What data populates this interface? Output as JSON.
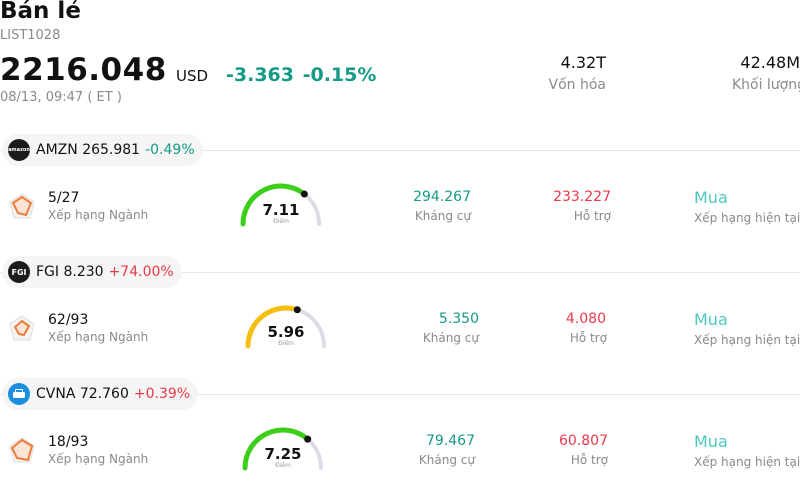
{
  "header": {
    "title": "Bán lẻ",
    "code": "LIST1028",
    "price": "2216.048",
    "currency": "USD",
    "change": "-3.363",
    "change_pct": "-0.15%",
    "time": "08/13, 09:47 ( ET )",
    "market_cap_value": "4.32T",
    "market_cap_label": "Vốn hóa",
    "volume_value": "42.48M",
    "volume_label": "Khối lượng"
  },
  "colors": {
    "negative": "#149a86",
    "positive": "#e8394a",
    "gauge_green": "#3ccf1a",
    "gauge_yellow": "#f5bf0f",
    "gauge_track": "#dcdce6",
    "rating": "#4fc6c0"
  },
  "stocks": [
    {
      "logo_icon": "amazon-logo-icon",
      "logo_text": "amazon",
      "ticker": "AMZN",
      "price": "265.981",
      "change_pct": "-0.49%",
      "rank": "5/27",
      "rank_label": "Xếp hạng Ngành",
      "score": "7.11",
      "score_value": 7.11,
      "score_label": "Điểm",
      "resistance": "294.267",
      "resistance_label": "Kháng cự",
      "support": "233.227",
      "support_label": "Hỗ trợ",
      "rating": "Mua",
      "rating_label": "Xếp hạng hiện tại"
    },
    {
      "logo_icon": "fgi-logo-icon",
      "logo_text": "FGI",
      "ticker": "FGI",
      "price": "8.230",
      "change_pct": "+74.00%",
      "rank": "62/93",
      "rank_label": "Xếp hạng Ngành",
      "score": "5.96",
      "score_value": 5.96,
      "score_label": "Điểm",
      "resistance": "5.350",
      "resistance_label": "Kháng cự",
      "support": "4.080",
      "support_label": "Hỗ trợ",
      "rating": "Mua",
      "rating_label": "Xếp hạng hiện tại"
    },
    {
      "logo_icon": "carvana-logo-icon",
      "logo_text": "",
      "ticker": "CVNA",
      "price": "72.760",
      "change_pct": "+0.39%",
      "rank": "18/93",
      "rank_label": "Xếp hạng Ngành",
      "score": "7.25",
      "score_value": 7.25,
      "score_label": "Điểm",
      "resistance": "79.467",
      "resistance_label": "Kháng cự",
      "support": "60.807",
      "support_label": "Hỗ trợ",
      "rating": "Mua",
      "rating_label": "Xếp hạng hiện tại"
    }
  ]
}
